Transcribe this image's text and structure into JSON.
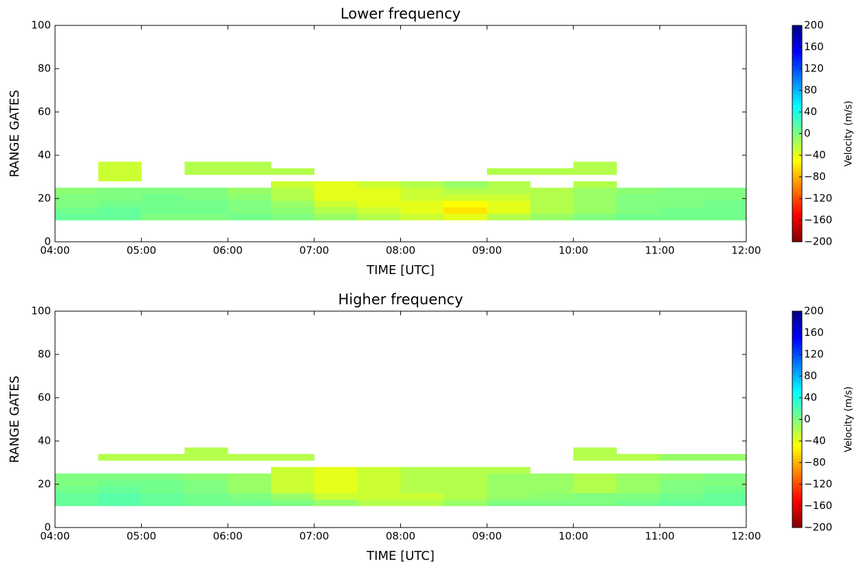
{
  "chart_data": [
    {
      "type": "heatmap",
      "title": "Lower frequency",
      "xlabel": "TIME [UTC]",
      "ylabel": "RANGE GATES",
      "xlim": [
        4,
        12
      ],
      "xticks": [
        {
          "value": 4,
          "label": "04:00"
        },
        {
          "value": 5,
          "label": "05:00"
        },
        {
          "value": 6,
          "label": "06:00"
        },
        {
          "value": 7,
          "label": "07:00"
        },
        {
          "value": 8,
          "label": "08:00"
        },
        {
          "value": 9,
          "label": "09:00"
        },
        {
          "value": 10,
          "label": "10:00"
        },
        {
          "value": 11,
          "label": "11:00"
        },
        {
          "value": 12,
          "label": "12:00"
        }
      ],
      "ylim": [
        0,
        100
      ],
      "yticks": [
        0,
        20,
        40,
        60,
        80,
        100
      ],
      "x_bins": [
        4,
        4.5,
        5,
        5.5,
        6,
        6.5,
        7,
        7.5,
        8,
        8.5,
        9,
        9.5,
        10,
        10.5,
        11,
        11.5,
        12
      ],
      "y_bins": [
        10,
        13,
        16,
        19,
        22,
        25,
        28,
        31,
        34,
        37
      ],
      "z": [
        [
          10,
          10,
          0,
          0,
          5,
          0,
          -10,
          -20,
          -30,
          -40,
          -20,
          -10,
          0,
          5,
          5,
          5
        ],
        [
          5,
          10,
          5,
          5,
          0,
          -5,
          -20,
          -30,
          -40,
          -60,
          -40,
          -20,
          -10,
          0,
          5,
          5
        ],
        [
          0,
          5,
          5,
          5,
          0,
          -10,
          -30,
          -40,
          -40,
          -50,
          -40,
          -20,
          -10,
          0,
          0,
          5
        ],
        [
          0,
          0,
          5,
          0,
          -5,
          -20,
          -40,
          -40,
          -30,
          -30,
          -30,
          -20,
          -10,
          0,
          0,
          0
        ],
        [
          -5,
          0,
          0,
          0,
          -10,
          -20,
          -40,
          -40,
          -30,
          -20,
          -20,
          -20,
          -10,
          -5,
          0,
          0
        ],
        [
          null,
          null,
          null,
          null,
          null,
          -30,
          -40,
          -30,
          -20,
          -10,
          -20,
          null,
          -20,
          null,
          null,
          null
        ],
        [
          null,
          -30,
          null,
          null,
          null,
          null,
          null,
          null,
          null,
          null,
          null,
          null,
          null,
          null,
          null,
          null
        ],
        [
          null,
          -30,
          null,
          -20,
          -20,
          -20,
          null,
          null,
          null,
          null,
          -20,
          -20,
          -20,
          null,
          null,
          null
        ],
        [
          null,
          -30,
          null,
          -20,
          -20,
          null,
          null,
          null,
          null,
          null,
          null,
          null,
          -20,
          null,
          null,
          null
        ]
      ],
      "colormap": "jet_r",
      "colorbar": {
        "label": "Velocity (m/s)",
        "lim": [
          -200,
          200
        ],
        "ticks": [
          200,
          160,
          120,
          80,
          40,
          0,
          {
            "value": -40,
            "label": "−40"
          },
          {
            "value": -80,
            "label": "−80"
          },
          {
            "value": -120,
            "label": "−120"
          },
          {
            "value": -160,
            "label": "−160"
          },
          {
            "value": -200,
            "label": "−200"
          }
        ]
      }
    },
    {
      "type": "heatmap",
      "title": "Higher frequency",
      "xlabel": "TIME [UTC]",
      "ylabel": "RANGE GATES",
      "xlim": [
        4,
        12
      ],
      "xticks": [
        {
          "value": 4,
          "label": "04:00"
        },
        {
          "value": 5,
          "label": "05:00"
        },
        {
          "value": 6,
          "label": "06:00"
        },
        {
          "value": 7,
          "label": "07:00"
        },
        {
          "value": 8,
          "label": "08:00"
        },
        {
          "value": 9,
          "label": "09:00"
        },
        {
          "value": 10,
          "label": "10:00"
        },
        {
          "value": 11,
          "label": "11:00"
        },
        {
          "value": 12,
          "label": "12:00"
        }
      ],
      "ylim": [
        0,
        100
      ],
      "yticks": [
        0,
        20,
        40,
        60,
        80,
        100
      ],
      "x_bins": [
        4,
        4.5,
        5,
        5.5,
        6,
        6.5,
        7,
        7.5,
        8,
        8.5,
        9,
        9.5,
        10,
        10.5,
        11,
        11.5,
        12
      ],
      "y_bins": [
        10,
        13,
        16,
        19,
        22,
        25,
        28,
        31,
        34,
        37
      ],
      "z": [
        [
          10,
          15,
          10,
          5,
          5,
          0,
          -10,
          -20,
          -20,
          -10,
          0,
          0,
          0,
          5,
          10,
          10
        ],
        [
          10,
          15,
          10,
          5,
          0,
          -10,
          -30,
          -30,
          -30,
          -20,
          -10,
          -5,
          0,
          0,
          5,
          10
        ],
        [
          5,
          10,
          5,
          0,
          -10,
          -30,
          -40,
          -30,
          -20,
          -20,
          -10,
          -10,
          -20,
          -10,
          0,
          5
        ],
        [
          0,
          5,
          5,
          0,
          -10,
          -30,
          -40,
          -30,
          -20,
          -20,
          -10,
          -10,
          -20,
          -10,
          0,
          0
        ],
        [
          0,
          0,
          0,
          -5,
          -10,
          -30,
          -40,
          -30,
          -20,
          -20,
          -10,
          -10,
          -20,
          -10,
          -5,
          0
        ],
        [
          null,
          null,
          null,
          null,
          null,
          -30,
          -40,
          -30,
          -20,
          -20,
          -20,
          null,
          null,
          null,
          null,
          null
        ],
        [
          null,
          null,
          null,
          null,
          null,
          null,
          null,
          null,
          null,
          null,
          null,
          null,
          null,
          null,
          null,
          null
        ],
        [
          null,
          -20,
          -20,
          -20,
          -20,
          -20,
          null,
          null,
          null,
          null,
          null,
          null,
          -20,
          -20,
          -10,
          -10
        ],
        [
          null,
          null,
          null,
          -20,
          null,
          null,
          null,
          null,
          null,
          null,
          null,
          null,
          -20,
          null,
          null,
          null
        ]
      ],
      "colormap": "jet_r",
      "colorbar": {
        "label": "Velocity (m/s)",
        "lim": [
          -200,
          200
        ],
        "ticks": [
          200,
          160,
          120,
          80,
          40,
          0,
          {
            "value": -40,
            "label": "−40"
          },
          {
            "value": -80,
            "label": "−80"
          },
          {
            "value": -120,
            "label": "−120"
          },
          {
            "value": -160,
            "label": "−160"
          },
          {
            "value": -200,
            "label": "−200"
          }
        ]
      }
    }
  ]
}
